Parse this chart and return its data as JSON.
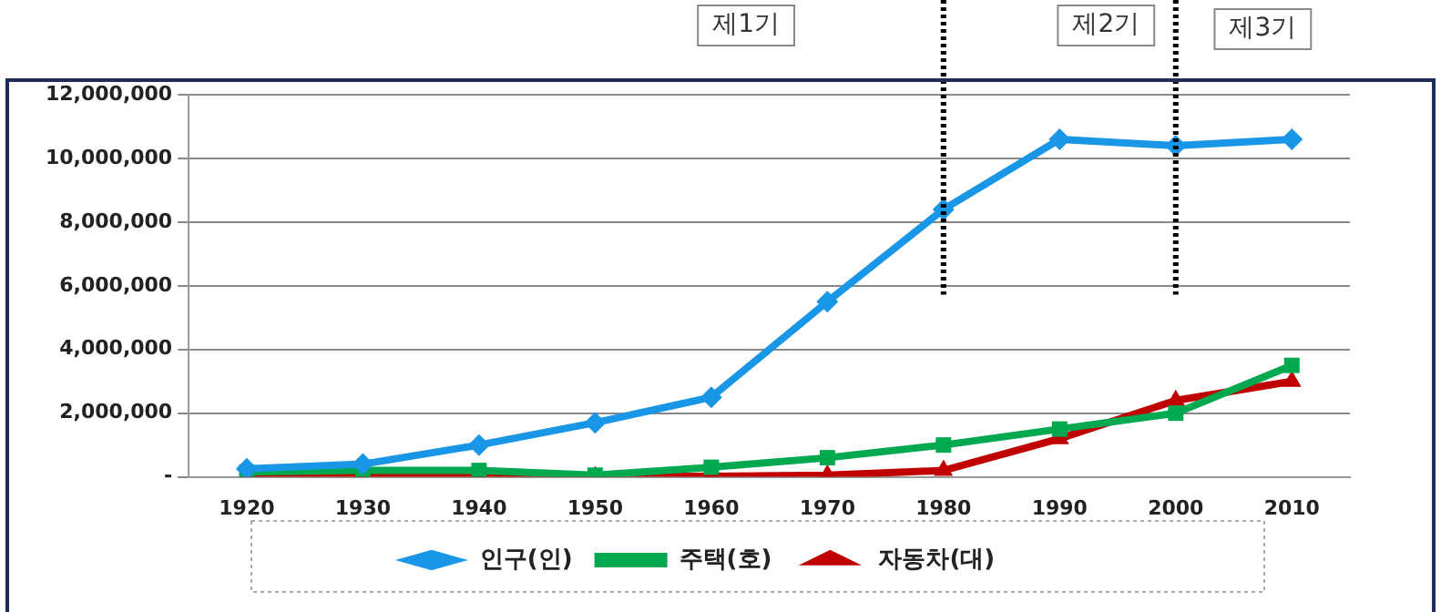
{
  "chart_data": {
    "type": "line",
    "categories": [
      "1920",
      "1930",
      "1940",
      "1950",
      "1960",
      "1970",
      "1980",
      "1990",
      "2000",
      "2010"
    ],
    "series": [
      {
        "name": "인구(인)",
        "color": "#1a96e6",
        "marker": "diamond",
        "values": [
          250000,
          400000,
          1000000,
          1700000,
          2500000,
          5500000,
          8400000,
          10600000,
          10400000,
          10600000
        ]
      },
      {
        "name": "주택(호)",
        "color": "#00a850",
        "marker": "square",
        "values": [
          150000,
          200000,
          200000,
          50000,
          300000,
          600000,
          1000000,
          1500000,
          2000000,
          3500000
        ]
      },
      {
        "name": "자동차(대)",
        "color": "#c00000",
        "marker": "triangle",
        "values": [
          0,
          0,
          0,
          0,
          20000,
          50000,
          200000,
          1200000,
          2400000,
          3000000
        ]
      }
    ],
    "ylim": [
      0,
      12000000
    ],
    "yticks": [
      {
        "value": 0,
        "label": "-"
      },
      {
        "value": 2000000,
        "label": "2,000,000"
      },
      {
        "value": 4000000,
        "label": "4,000,000"
      },
      {
        "value": 6000000,
        "label": "6,000,000"
      },
      {
        "value": 8000000,
        "label": "8,000,000"
      },
      {
        "value": 10000000,
        "label": "10,000,000"
      },
      {
        "value": 12000000,
        "label": "12,000,000"
      }
    ],
    "grid": "y",
    "legend": "bottom",
    "line_style": "solid",
    "ref_lines": [
      {
        "axis": "x",
        "value": "1980",
        "color": "#000000",
        "line_style": "dotted"
      },
      {
        "axis": "x",
        "value": "2000",
        "color": "#000000",
        "line_style": "dotted"
      }
    ],
    "annotations": [
      "제1기",
      "제2기",
      "제3기"
    ]
  }
}
